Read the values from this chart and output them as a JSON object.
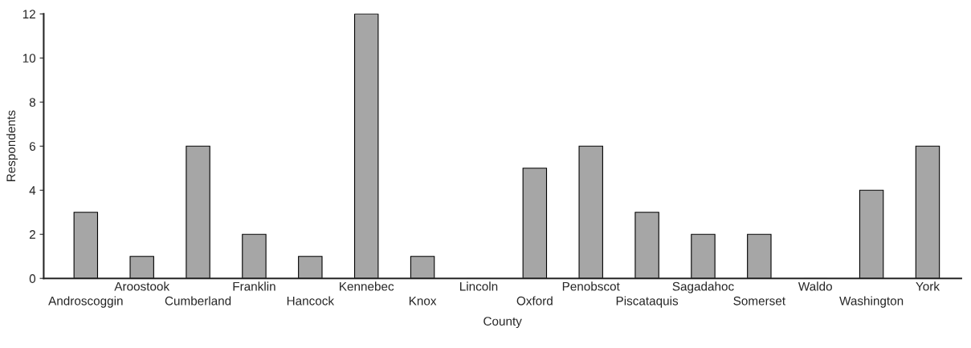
{
  "chart_data": {
    "type": "bar",
    "xlabel": "County",
    "ylabel": "Respondents",
    "categories": [
      "Androscoggin",
      "Aroostook",
      "Cumberland",
      "Franklin",
      "Hancock",
      "Kennebec",
      "Knox",
      "Lincoln",
      "Oxford",
      "Penobscot",
      "Piscataquis",
      "Sagadahoc",
      "Somerset",
      "Waldo",
      "Washington",
      "York"
    ],
    "values": [
      3,
      1,
      6,
      2,
      1,
      12,
      1,
      0,
      5,
      6,
      3,
      2,
      2,
      0,
      4,
      6
    ],
    "color": "#a6a6a6",
    "ylim": [
      0,
      12
    ],
    "yticks": [
      0,
      2,
      4,
      6,
      8,
      10,
      12
    ],
    "grid": false,
    "legend": false
  }
}
